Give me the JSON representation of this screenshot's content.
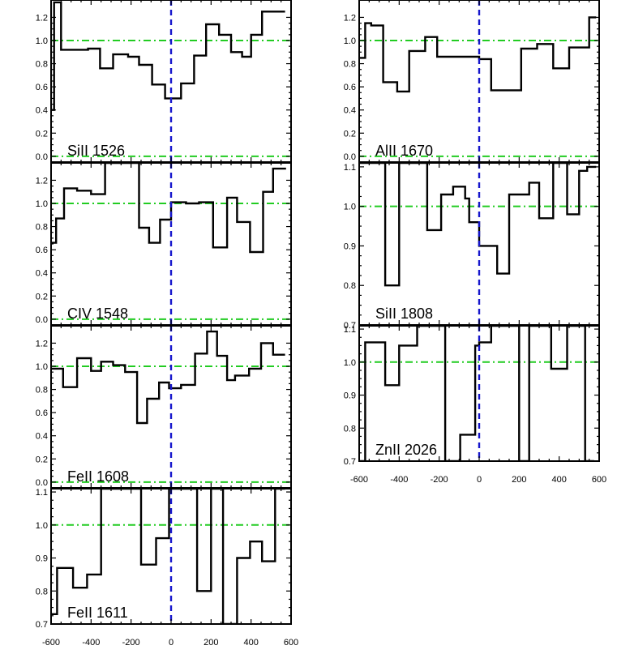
{
  "colors": {
    "continuum": "#22cc22",
    "zero_velocity": "#1515cc",
    "spectrum": "#000000"
  },
  "chart_data": [
    {
      "type": "line",
      "label": "SiII 1526",
      "xlim": [
        -600,
        600
      ],
      "ylim": [
        -0.05,
        1.35
      ],
      "yticks": [
        0.0,
        0.2,
        0.4,
        0.6,
        0.8,
        1.0,
        1.2
      ],
      "ytick_labels": [
        "0.0",
        "0.2",
        "0.4",
        "0.6",
        "0.8",
        "1.0",
        "1.2"
      ],
      "xticks": [],
      "xtick_labels": [],
      "reference_lines": [
        0.0,
        1.0
      ],
      "zero_velocity": 0,
      "step_edges": [
        -600,
        -585,
        -550,
        -480,
        -415,
        -355,
        -290,
        -215,
        -160,
        -95,
        -30,
        50,
        115,
        175,
        240,
        300,
        355,
        400,
        455,
        520,
        570
      ],
      "values": [
        0.4,
        1.33,
        0.92,
        0.92,
        0.93,
        0.76,
        0.88,
        0.86,
        0.79,
        0.62,
        0.5,
        0.63,
        0.87,
        1.14,
        1.05,
        0.9,
        0.86,
        1.05,
        1.25,
        1.25
      ]
    },
    {
      "type": "line",
      "label": "AlII 1670",
      "xlim": [
        -600,
        600
      ],
      "ylim": [
        -0.05,
        1.35
      ],
      "yticks": [
        0.0,
        0.2,
        0.4,
        0.6,
        0.8,
        1.0,
        1.2
      ],
      "ytick_labels": [
        "0.0",
        "0.2",
        "0.4",
        "0.6",
        "0.8",
        "1.0",
        "1.2"
      ],
      "xticks": [],
      "xtick_labels": [],
      "reference_lines": [
        0.0,
        1.0
      ],
      "zero_velocity": 0,
      "step_edges": [
        -600,
        -570,
        -540,
        -480,
        -410,
        -350,
        -270,
        -210,
        -150,
        -80,
        0,
        60,
        130,
        210,
        290,
        370,
        450,
        550,
        585
      ],
      "values": [
        0.85,
        1.15,
        1.13,
        0.64,
        0.56,
        0.91,
        1.03,
        0.86,
        0.86,
        0.86,
        0.84,
        0.57,
        0.57,
        0.93,
        0.97,
        0.76,
        0.94,
        1.2
      ]
    },
    {
      "type": "line",
      "label": "CIV 1548",
      "xlim": [
        -600,
        600
      ],
      "ylim": [
        -0.05,
        1.35
      ],
      "yticks": [
        0.0,
        0.2,
        0.4,
        0.6,
        0.8,
        1.0,
        1.2
      ],
      "ytick_labels": [
        "0.0",
        "0.2",
        "0.4",
        "0.6",
        "0.8",
        "1.0",
        "1.2"
      ],
      "xticks": [],
      "xtick_labels": [],
      "reference_lines": [
        0.0,
        1.0
      ],
      "zero_velocity": 0,
      "step_edges": [
        -600,
        -575,
        -535,
        -470,
        -400,
        -330,
        -280,
        -230,
        -160,
        -110,
        -55,
        0,
        75,
        140,
        210,
        280,
        330,
        395,
        460,
        510,
        575
      ],
      "values": [
        0.66,
        0.87,
        1.13,
        1.11,
        1.08,
        1.35,
        1.35,
        1.35,
        0.79,
        0.66,
        0.86,
        1.01,
        1.0,
        1.01,
        0.62,
        1.05,
        0.84,
        0.58,
        1.1,
        1.3
      ]
    },
    {
      "type": "line",
      "label": "SiII 1808",
      "xlim": [
        -600,
        600
      ],
      "ylim": [
        0.7,
        1.11
      ],
      "yticks": [
        0.7,
        0.8,
        0.9,
        1.0,
        1.1
      ],
      "ytick_labels": [
        "0.7",
        "0.8",
        "0.9",
        "1.0",
        "1.1"
      ],
      "xticks": [],
      "xtick_labels": [],
      "reference_lines": [
        1.0
      ],
      "zero_velocity": 0,
      "step_edges": [
        -600,
        -470,
        -400,
        -260,
        -190,
        -130,
        -70,
        -50,
        0,
        90,
        150,
        250,
        300,
        370,
        440,
        500,
        540,
        585
      ],
      "values": [
        1.11,
        0.8,
        1.11,
        0.94,
        1.03,
        1.05,
        1.02,
        0.96,
        0.9,
        0.83,
        1.03,
        1.06,
        0.97,
        1.11,
        0.98,
        1.09,
        1.1
      ]
    },
    {
      "type": "line",
      "label": "FeII 1608",
      "xlim": [
        -600,
        600
      ],
      "ylim": [
        -0.05,
        1.35
      ],
      "yticks": [
        0.0,
        0.2,
        0.4,
        0.6,
        0.8,
        1.0,
        1.2
      ],
      "ytick_labels": [
        "0.0",
        "0.2",
        "0.4",
        "0.6",
        "0.8",
        "1.0",
        "1.2"
      ],
      "xticks": [],
      "xtick_labels": [],
      "reference_lines": [
        0.0,
        1.0
      ],
      "zero_velocity": 0,
      "step_edges": [
        -600,
        -540,
        -470,
        -400,
        -350,
        -290,
        -230,
        -170,
        -120,
        -60,
        -10,
        50,
        120,
        180,
        230,
        280,
        320,
        390,
        450,
        510,
        570
      ],
      "values": [
        0.98,
        0.82,
        1.07,
        0.96,
        1.04,
        1.01,
        0.95,
        0.51,
        0.72,
        0.86,
        0.81,
        0.84,
        1.11,
        1.3,
        1.09,
        0.88,
        0.92,
        0.98,
        1.2,
        1.1
      ]
    },
    {
      "type": "line",
      "label": "ZnII 2026",
      "xlim": [
        -600,
        600
      ],
      "ylim": [
        0.7,
        1.11
      ],
      "yticks": [
        0.7,
        0.8,
        0.9,
        1.0,
        1.1
      ],
      "ytick_labels": [
        "0.7",
        "0.8",
        "0.9",
        "1.0",
        "1.1"
      ],
      "xticks": [
        -600,
        -400,
        -200,
        0,
        200,
        400,
        600
      ],
      "xtick_labels": [
        "-600",
        "-400",
        "-200",
        "0",
        "200",
        "400",
        "600"
      ],
      "reference_lines": [
        1.0
      ],
      "zero_velocity": 0,
      "step_edges": [
        -600,
        -570,
        -470,
        -400,
        -310,
        -250,
        -170,
        -95,
        -20,
        0,
        60,
        200,
        250,
        310,
        360,
        440,
        530,
        575
      ],
      "values": [
        0.7,
        1.06,
        0.93,
        1.05,
        1.11,
        1.11,
        0.7,
        0.78,
        1.05,
        1.06,
        1.11,
        0.7,
        1.11,
        1.11,
        0.98,
        1.11,
        0.7
      ]
    },
    {
      "type": "line",
      "label": "FeII 1611",
      "xlim": [
        -600,
        600
      ],
      "ylim": [
        0.7,
        1.11
      ],
      "yticks": [
        0.7,
        0.8,
        0.9,
        1.0,
        1.1
      ],
      "ytick_labels": [
        "0.7",
        "0.8",
        "0.9",
        "1.0",
        "1.1"
      ],
      "xticks": [
        -600,
        -400,
        -200,
        0,
        200,
        400,
        600
      ],
      "xtick_labels": [
        "-600",
        "-400",
        "-200",
        "0",
        "200",
        "400",
        "600"
      ],
      "reference_lines": [
        1.0
      ],
      "zero_velocity": 0,
      "step_edges": [
        -600,
        -570,
        -490,
        -420,
        -350,
        -280,
        -220,
        -150,
        -75,
        -10,
        20,
        60,
        130,
        200,
        260,
        330,
        395,
        455,
        520,
        570
      ],
      "values": [
        0.73,
        0.87,
        0.81,
        0.85,
        1.11,
        1.11,
        1.11,
        0.88,
        0.96,
        1.11,
        1.11,
        1.11,
        0.8,
        1.11,
        0.7,
        0.9,
        0.95,
        0.89,
        1.11
      ]
    }
  ]
}
